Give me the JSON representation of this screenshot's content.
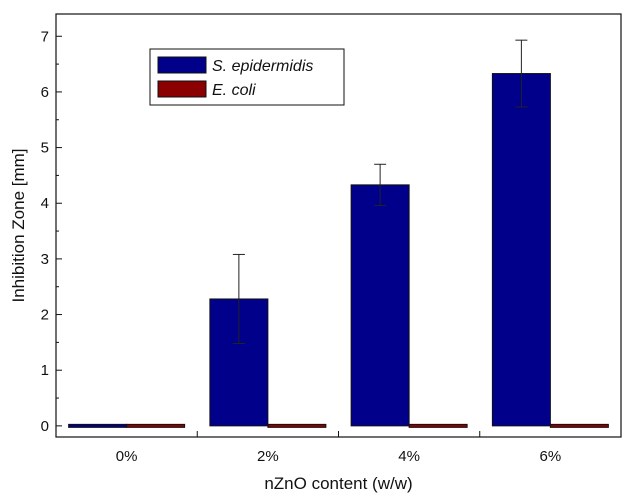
{
  "chart_data": {
    "type": "bar",
    "title": "",
    "xlabel": "nZnO content (w/w)",
    "ylabel": "Inhibition Zone [mm]",
    "categories": [
      "0%",
      "2%",
      "4%",
      "6%"
    ],
    "ylim": [
      -0.2,
      7.4
    ],
    "yticks": [
      "0",
      "1",
      "2",
      "3",
      "4",
      "5",
      "6",
      "7"
    ],
    "grid": false,
    "legend_position": "top-left",
    "series": [
      {
        "name": "S. epidermidis",
        "color": "#00008b",
        "values": [
          0.0,
          2.28,
          4.33,
          6.33
        ],
        "errors": [
          0.0,
          0.8,
          0.37,
          0.6
        ]
      },
      {
        "name": "E. coli",
        "color": "#8b0000",
        "values": [
          0.0,
          0.0,
          0.0,
          0.0
        ],
        "errors": [
          0.0,
          0.0,
          0.0,
          0.0
        ]
      }
    ]
  }
}
